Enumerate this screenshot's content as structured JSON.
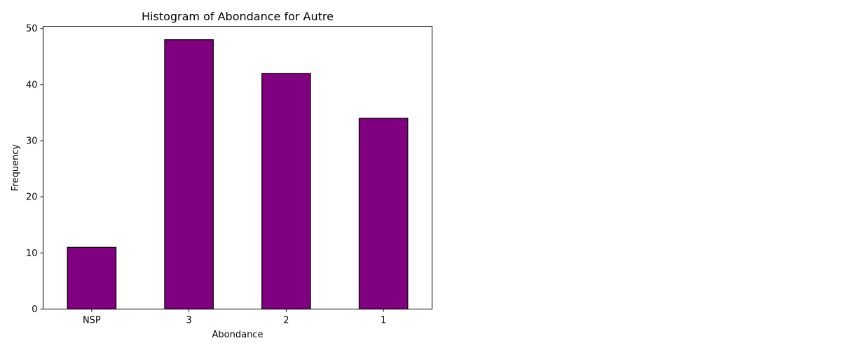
{
  "chart_data": {
    "type": "bar",
    "title": "Histogram of Abondance for Autre",
    "xlabel": "Abondance",
    "ylabel": "Frequency",
    "categories": [
      "NSP",
      "3",
      "2",
      "1"
    ],
    "values": [
      11,
      48,
      42,
      34
    ],
    "ylim": [
      0,
      50.4
    ],
    "yticks": [
      0,
      10,
      20,
      30,
      40,
      50
    ],
    "grid": false,
    "bar_color": "#800080",
    "edge_color": "#000000"
  }
}
